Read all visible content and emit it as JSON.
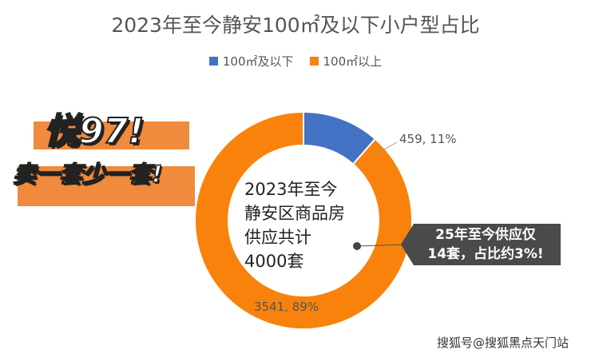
{
  "chart_data": {
    "type": "pie",
    "title": "2023年至今静安100㎡及以下小户型占比",
    "legend_position": "top",
    "categories": [
      "100㎡及以下",
      "100㎡以上"
    ],
    "values": [
      459,
      3541
    ],
    "percents": [
      "11%",
      "89%"
    ],
    "data_labels": [
      "459, 11%",
      "3541, 89%"
    ],
    "colors": [
      "#4472c4",
      "#f8820c"
    ],
    "center_text": [
      "2023年至今",
      "静安区商品房",
      "供应共计",
      "4000套"
    ]
  },
  "promo": {
    "line1": "悦97!",
    "line2": "卖一套少一套!"
  },
  "callout": {
    "line1": "25年至今供应仅",
    "line2": "14套，占比约3%!"
  },
  "watermark": "搜狐号@搜狐黑点天门站"
}
